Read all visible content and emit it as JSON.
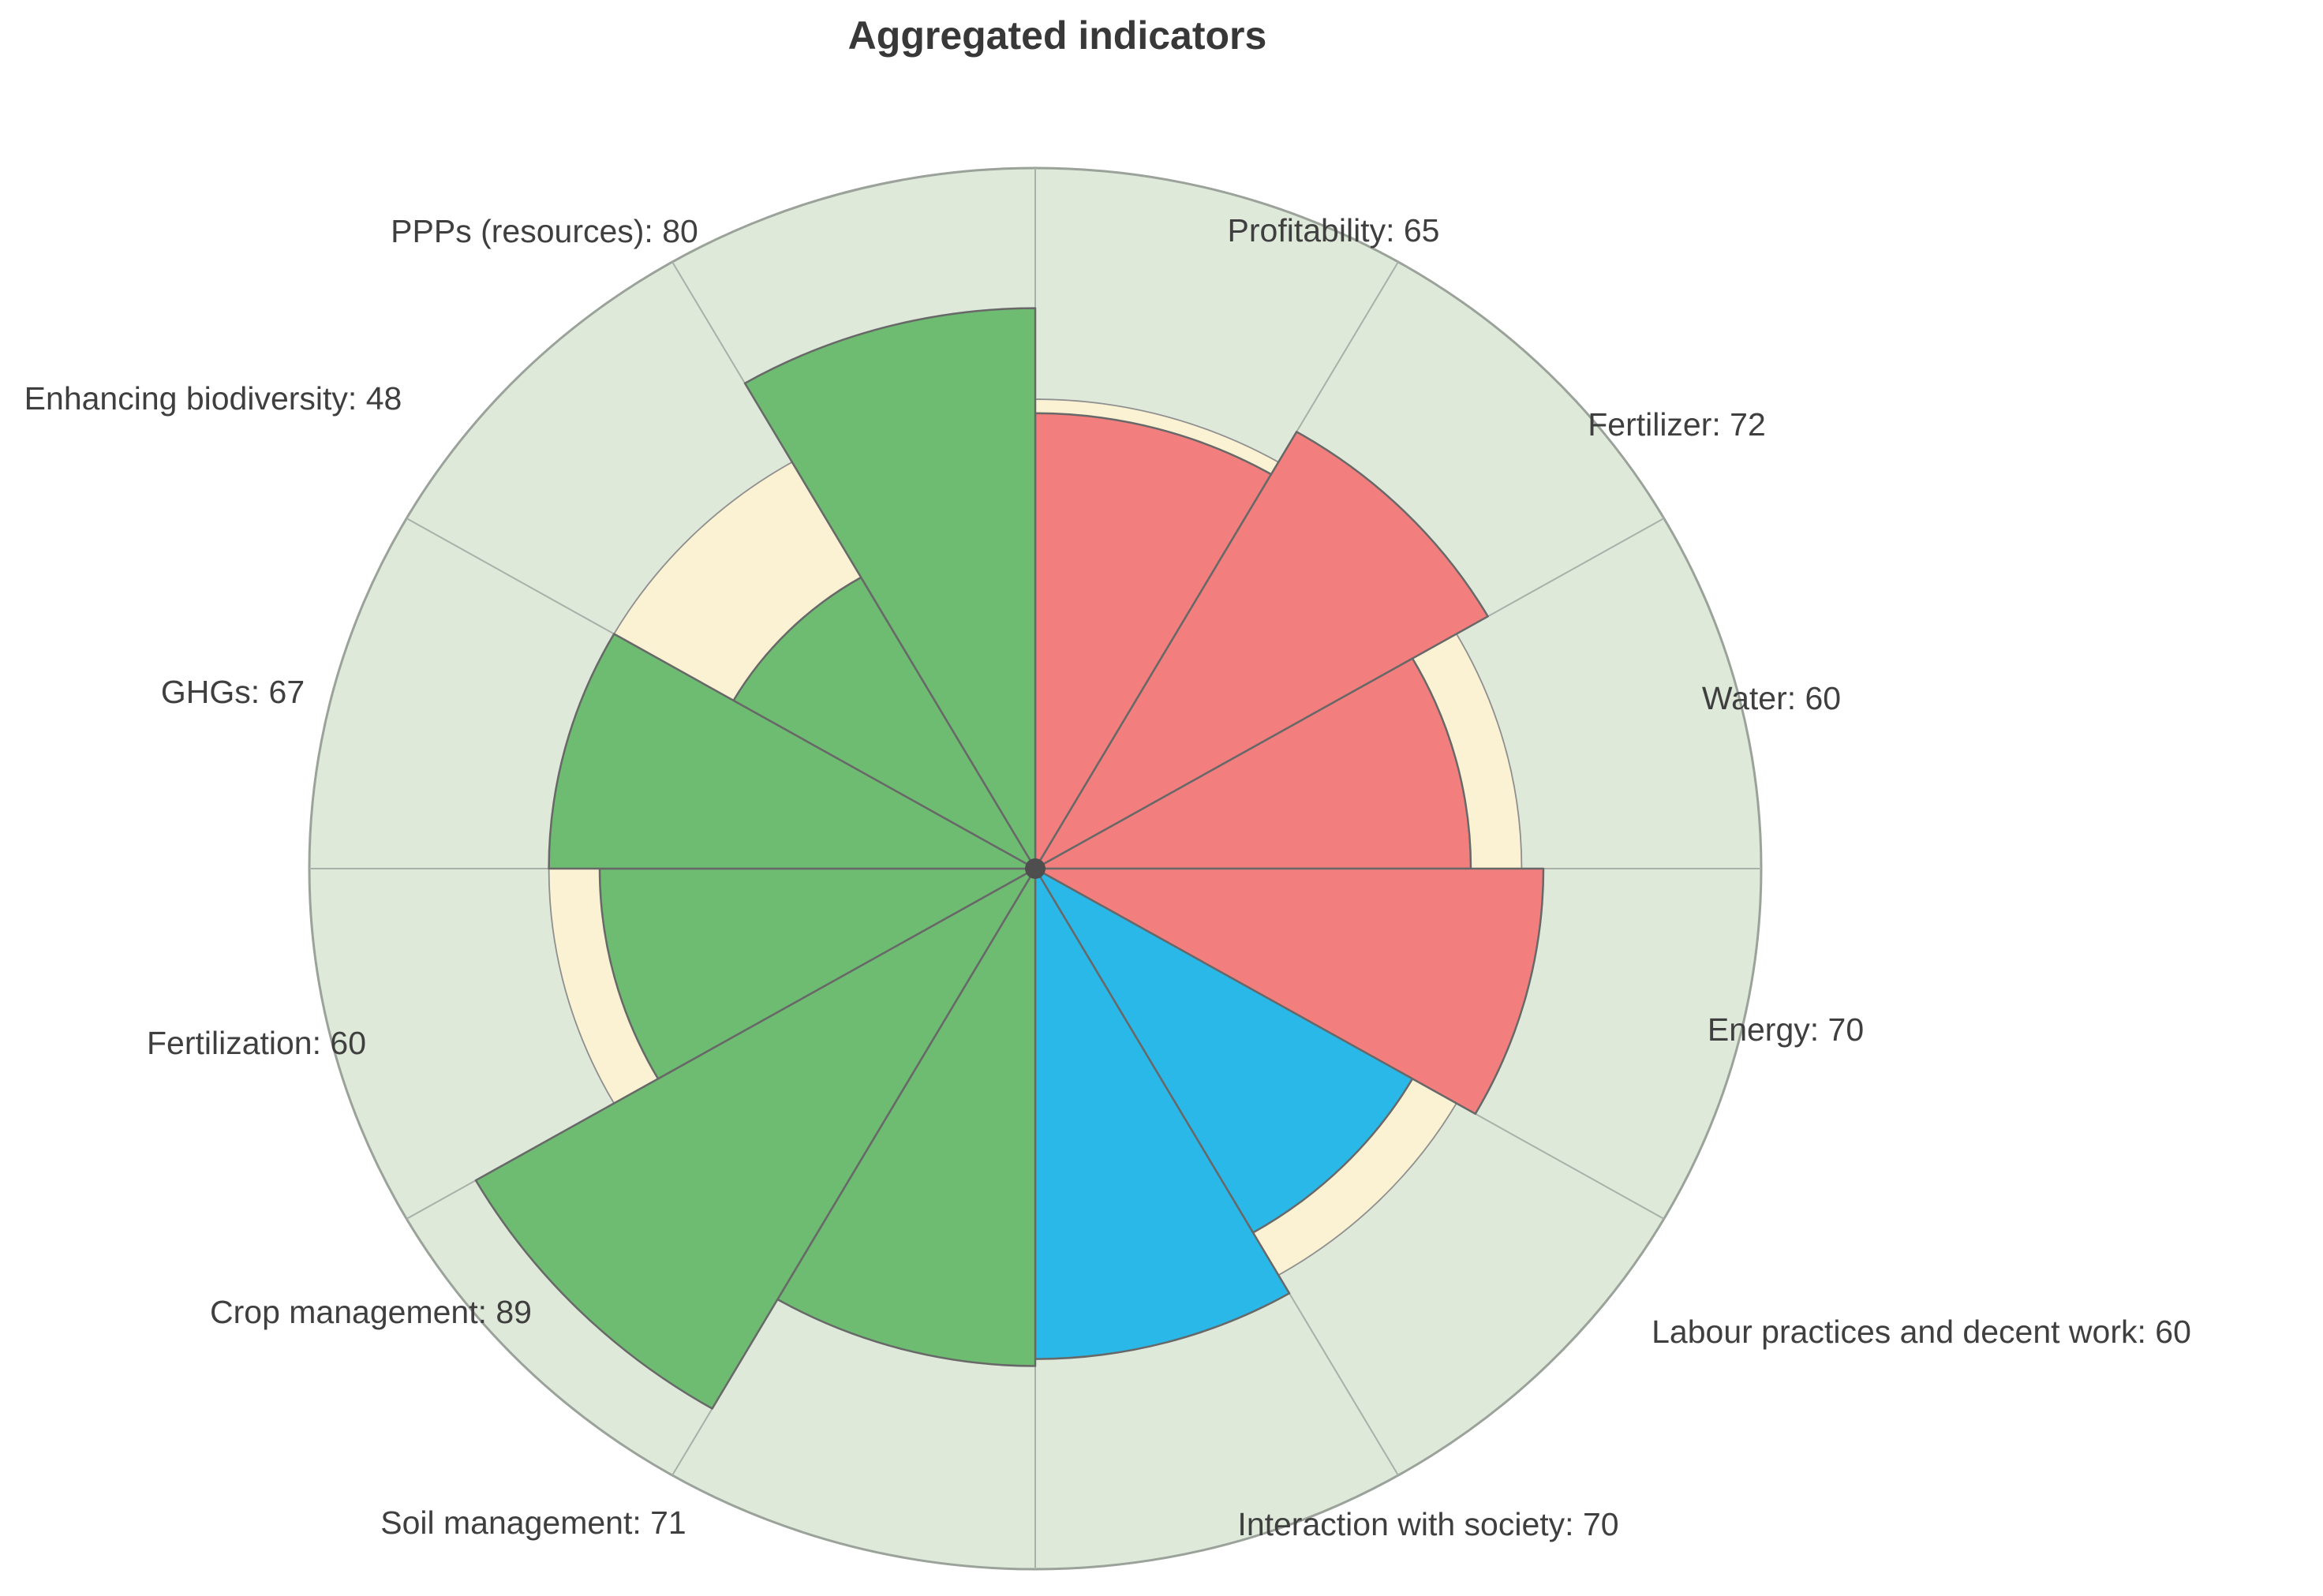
{
  "title": "Aggregated indicators",
  "chart_data": {
    "type": "bar",
    "polar": true,
    "direction": "clockwise",
    "start": "top",
    "sector_span_deg": 30,
    "title": "Aggregated indicators",
    "max_value": 100,
    "legend": "none",
    "grid": "off",
    "categories": [
      "Profitability",
      "Fertilizer",
      "Water",
      "Energy",
      "Labour practices and decent work",
      "Interaction with society",
      "Soil management",
      "Crop management",
      "Fertilization",
      "GHGs",
      "Enhancing biodiversity",
      "PPPs (resources)"
    ],
    "values": [
      65,
      72,
      60,
      70,
      60,
      70,
      71,
      89,
      60,
      67,
      48,
      80
    ],
    "colors": [
      "#F37E7E",
      "#F37E7E",
      "#F37E7E",
      "#F37E7E",
      "#2AB8E8",
      "#2AB8E8",
      "#6EBB72",
      "#6EBB72",
      "#6EBB72",
      "#6EBB72",
      "#6EBB72",
      "#6EBB72"
    ],
    "reference_ring": {
      "outer_value": 67,
      "fill": "#FBF2D4",
      "stroke": "#8f8f8f"
    },
    "background": {
      "disk_fill": "#DFE9DA",
      "disk_stroke": "#9aa29a",
      "page_fill": "#FFFFFF",
      "divider_stroke": "#a9b0a9",
      "bar_stroke": "#686868",
      "center_dot_fill": "#4e4e4e",
      "label_color": "#3f3f3f"
    }
  }
}
